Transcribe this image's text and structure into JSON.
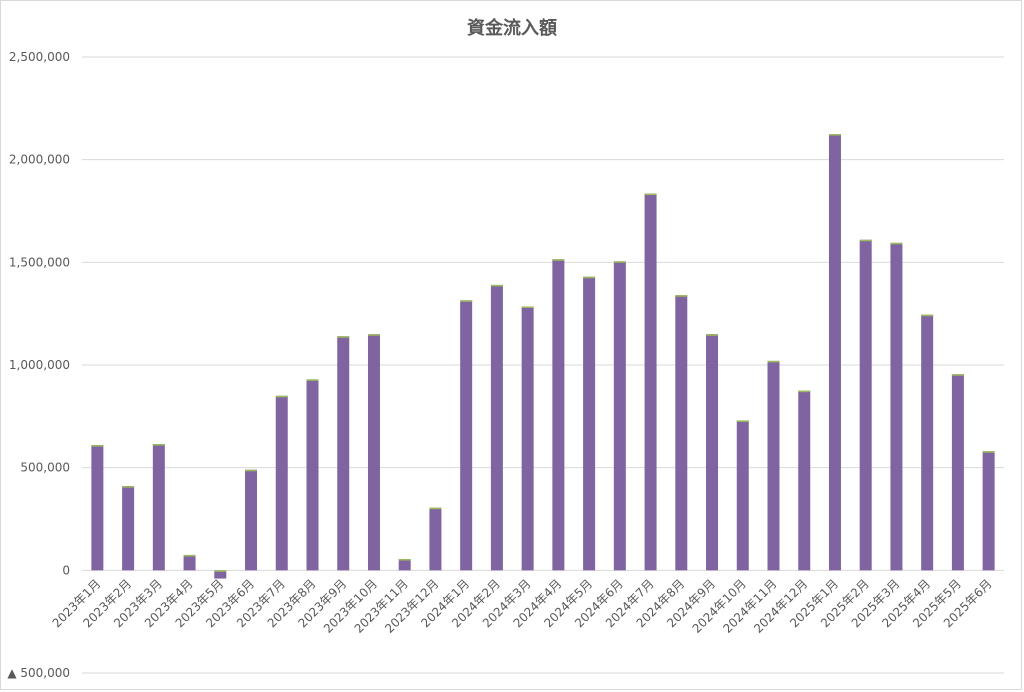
{
  "chart_data": {
    "type": "bar",
    "title": "資金流入額",
    "xlabel": "",
    "ylabel": "",
    "ylim": [
      -500000,
      2500000
    ],
    "y_ticks": [
      -500000,
      0,
      500000,
      1000000,
      1500000,
      2000000,
      2500000
    ],
    "y_tick_labels": [
      "▲ 500,000",
      "0",
      "500,000",
      "1,000,000",
      "1,500,000",
      "2,000,000",
      "2,500,000"
    ],
    "grid": true,
    "legend": "none",
    "bar_color": "#8064a2",
    "bar_cap_color": "#9bbb59",
    "categories": [
      "2023年1月",
      "2023年2月",
      "2023年3月",
      "2023年4月",
      "2023年5月",
      "2023年6月",
      "2023年7月",
      "2023年8月",
      "2023年9月",
      "2023年10月",
      "2023年11月",
      "2023年12月",
      "2024年1月",
      "2024年2月",
      "2024年3月",
      "2024年4月",
      "2024年5月",
      "2024年6月",
      "2024年7月",
      "2024年8月",
      "2024年9月",
      "2024年10月",
      "2024年11月",
      "2024年12月",
      "2025年1月",
      "2025年2月",
      "2025年3月",
      "2025年4月",
      "2025年5月",
      "2025年6月"
    ],
    "values": [
      610000,
      410000,
      615000,
      75000,
      -40000,
      490000,
      850000,
      930000,
      1140000,
      1150000,
      55000,
      305000,
      1315000,
      1390000,
      1285000,
      1515000,
      1430000,
      1505000,
      1835000,
      1340000,
      1150000,
      730000,
      1020000,
      875000,
      2125000,
      1610000,
      1595000,
      1245000,
      955000,
      580000
    ]
  }
}
